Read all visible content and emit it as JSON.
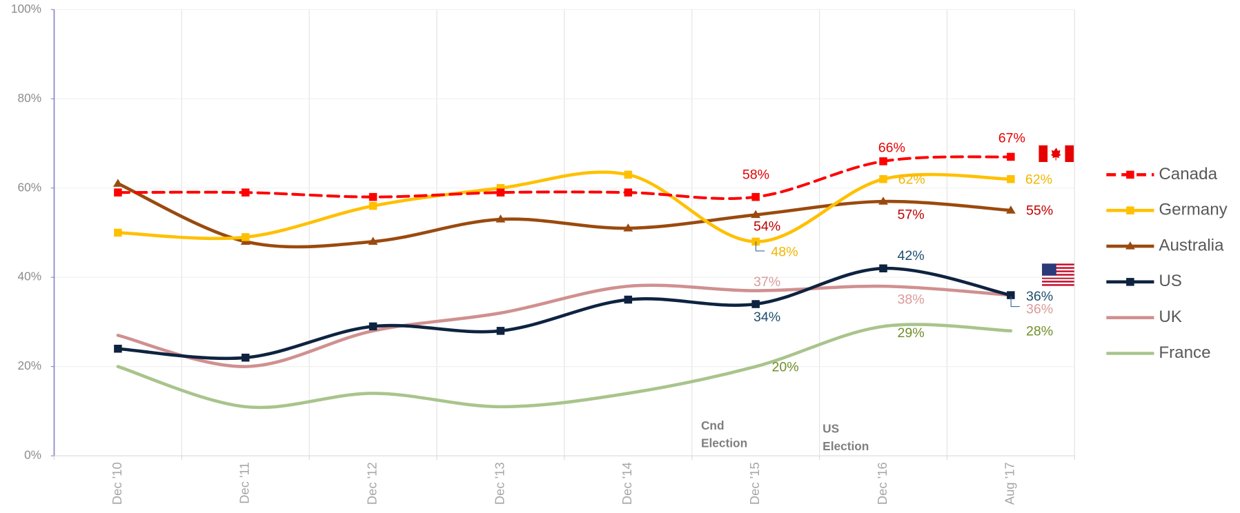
{
  "chart_data": {
    "type": "line",
    "categories": [
      "Dec '10",
      "Dec '11",
      "Dec '12",
      "Dec '13",
      "Dec '14",
      "Dec '15",
      "Dec '16",
      "Aug '17"
    ],
    "series": [
      {
        "name": "Canada",
        "color": "#ff0000",
        "dashed": true,
        "marker": "square",
        "values": [
          59,
          59,
          58,
          59,
          59,
          58,
          66,
          67
        ],
        "value_labels": [
          null,
          null,
          null,
          null,
          null,
          "58%",
          "66%",
          "67%"
        ],
        "label_color": "#e60000"
      },
      {
        "name": "Germany",
        "color": "#ffc000",
        "marker": "square",
        "values": [
          50,
          49,
          56,
          60,
          63,
          48,
          62,
          62
        ],
        "value_labels": [
          null,
          null,
          null,
          null,
          null,
          "48%",
          "62%",
          "62%"
        ],
        "label_color": "#f2b600"
      },
      {
        "name": "Australia",
        "color": "#9a4a0e",
        "marker": "triangle",
        "values": [
          61,
          48,
          48,
          53,
          51,
          54,
          57,
          55
        ],
        "value_labels": [
          null,
          null,
          null,
          null,
          null,
          "54%",
          "57%",
          "55%"
        ],
        "label_color": "#c00000"
      },
      {
        "name": "US",
        "color": "#0e2340",
        "marker": "square",
        "values": [
          24,
          22,
          29,
          28,
          35,
          34,
          42,
          36
        ],
        "value_labels": [
          null,
          null,
          null,
          null,
          null,
          "34%",
          "42%",
          "36%"
        ],
        "label_color": "#1f4e6e"
      },
      {
        "name": "UK",
        "color": "#d09090",
        "values": [
          27,
          20,
          28,
          32,
          38,
          37,
          38,
          36
        ],
        "value_labels": [
          null,
          null,
          null,
          null,
          null,
          "37%",
          "38%",
          "36%"
        ],
        "label_color": "#dc9a9a"
      },
      {
        "name": "France",
        "color": "#a9c48c",
        "values": [
          20,
          11,
          14,
          11,
          14,
          20,
          29,
          28
        ],
        "value_labels": [
          null,
          null,
          null,
          null,
          null,
          "20%",
          "29%",
          "28%"
        ],
        "label_color": "#6f8f2a"
      }
    ],
    "ylim": [
      0,
      100
    ],
    "yticks": [
      {
        "value": 0,
        "label": "0%"
      },
      {
        "value": 20,
        "label": "20%"
      },
      {
        "value": 40,
        "label": "40%"
      },
      {
        "value": 60,
        "label": "60%"
      },
      {
        "value": 80,
        "label": "80%"
      },
      {
        "value": 100,
        "label": "100%"
      }
    ],
    "grid": true,
    "legend": "right",
    "annotations": [
      {
        "lines": [
          "Cnd",
          "Election"
        ]
      },
      {
        "lines": [
          "US",
          "Election"
        ]
      }
    ]
  }
}
